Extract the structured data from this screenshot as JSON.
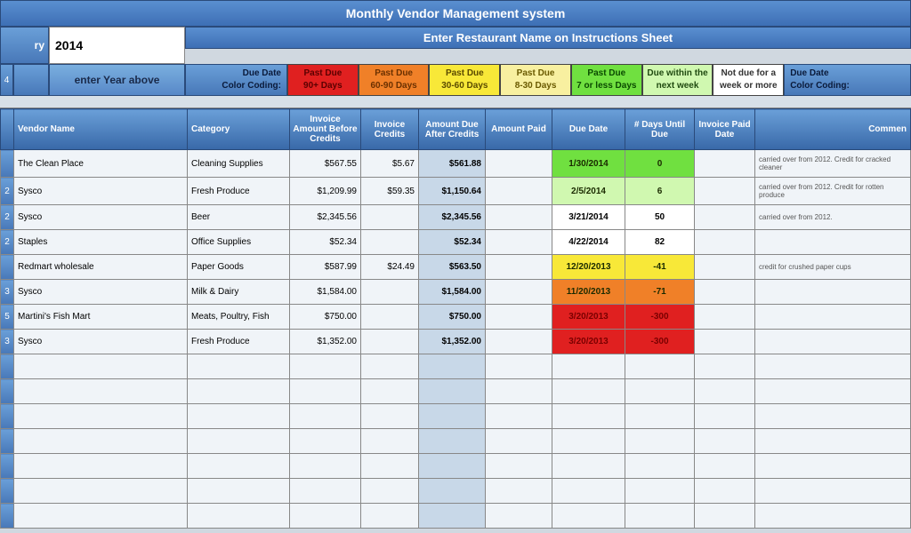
{
  "header": {
    "title": "Monthly Vendor Management system",
    "subtitle": "Enter Restaurant Name on Instructions Sheet",
    "year_label": "ry",
    "year_value": "2014",
    "enter_year": "enter Year above",
    "left_idx": "4"
  },
  "legend": {
    "label_line1": "Due Date",
    "label_line2": "Color Coding:",
    "end_line1": "Due Date",
    "end_line2": "Color Coding:",
    "items": [
      {
        "line1": "Past Due",
        "line2": "90+ Days",
        "bg": "#e02020",
        "fg": "#5a0000"
      },
      {
        "line1": "Past Due",
        "line2": "60-90 Days",
        "bg": "#f08028",
        "fg": "#6a3000"
      },
      {
        "line1": "Past Due",
        "line2": "30-60 Days",
        "bg": "#f8e838",
        "fg": "#5a4a00"
      },
      {
        "line1": "Past Due",
        "line2": "8-30 Days",
        "bg": "#f8f0a0",
        "fg": "#6a5a00"
      },
      {
        "line1": "Past Due",
        "line2": "7 or less Days",
        "bg": "#70e040",
        "fg": "#0a4a00"
      },
      {
        "line1": "Due within the",
        "line2": "next week",
        "bg": "#d0f8b0",
        "fg": "#204a10"
      },
      {
        "line1": "Not due for a",
        "line2": "week or more",
        "bg": "#ffffff",
        "fg": "#333333"
      }
    ]
  },
  "columns": {
    "idx": "",
    "vendor": "Vendor Name",
    "category": "Category",
    "inv_amt": "Invoice Amount Before Credits",
    "inv_cred": "Invoice Credits",
    "amt_due": "Amount Due After Credits",
    "amt_paid": "Amount Paid",
    "due_date": "Due Date",
    "days_until": "# Days Until Due",
    "paid_date": "Invoice Paid Date",
    "comment": "Commen"
  },
  "rows": [
    {
      "idx": "",
      "vendor": "The Clean Place",
      "category": "Cleaning Supplies",
      "inv_amt": "$567.55",
      "inv_cred": "$5.67",
      "amt_due": "$561.88",
      "amt_paid": "",
      "due_date": "1/30/2014",
      "days": "0",
      "due_bg": "#70e040",
      "days_bg": "#70e040",
      "comment": "carried over from 2012.  Credit for cracked cleaner"
    },
    {
      "idx": "2",
      "vendor": "Sysco",
      "category": "Fresh Produce",
      "inv_amt": "$1,209.99",
      "inv_cred": "$59.35",
      "amt_due": "$1,150.64",
      "amt_paid": "",
      "due_date": "2/5/2014",
      "days": "6",
      "due_bg": "#d0f8b0",
      "days_bg": "#d0f8b0",
      "comment": "carried over from 2012.  Credit for rotten produce"
    },
    {
      "idx": "2",
      "vendor": "Sysco",
      "category": "Beer",
      "inv_amt": "$2,345.56",
      "inv_cred": "",
      "amt_due": "$2,345.56",
      "amt_paid": "",
      "due_date": "3/21/2014",
      "days": "50",
      "due_bg": "#ffffff",
      "days_bg": "#ffffff",
      "comment": "carried over from 2012."
    },
    {
      "idx": "2",
      "vendor": "Staples",
      "category": "Office Supplies",
      "inv_amt": "$52.34",
      "inv_cred": "",
      "amt_due": "$52.34",
      "amt_paid": "",
      "due_date": "4/22/2014",
      "days": "82",
      "due_bg": "#ffffff",
      "days_bg": "#ffffff",
      "comment": ""
    },
    {
      "idx": "",
      "vendor": "Redmart wholesale",
      "category": "Paper Goods",
      "inv_amt": "$587.99",
      "inv_cred": "$24.49",
      "amt_due": "$563.50",
      "amt_paid": "",
      "due_date": "12/20/2013",
      "days": "-41",
      "due_bg": "#f8e838",
      "days_bg": "#f8e838",
      "comment": "credit for crushed paper cups"
    },
    {
      "idx": "3",
      "vendor": "Sysco",
      "category": "Milk & Dairy",
      "inv_amt": "$1,584.00",
      "inv_cred": "",
      "amt_due": "$1,584.00",
      "amt_paid": "",
      "due_date": "11/20/2013",
      "days": "-71",
      "due_bg": "#f08028",
      "days_bg": "#f08028",
      "comment": ""
    },
    {
      "idx": "5",
      "vendor": "Martini's Fish Mart",
      "category": "Meats, Poultry, Fish",
      "inv_amt": "$750.00",
      "inv_cred": "",
      "amt_due": "$750.00",
      "amt_paid": "",
      "due_date": "3/20/2013",
      "days": "-300",
      "due_bg": "#e02020",
      "days_bg": "#e02020",
      "comment": ""
    },
    {
      "idx": "3",
      "vendor": "Sysco",
      "category": "Fresh Produce",
      "inv_amt": "$1,352.00",
      "inv_cred": "",
      "amt_due": "$1,352.00",
      "amt_paid": "",
      "due_date": "3/20/2013",
      "days": "-300",
      "due_bg": "#e02020",
      "days_bg": "#e02020",
      "comment": ""
    }
  ],
  "empty_rows": 7
}
